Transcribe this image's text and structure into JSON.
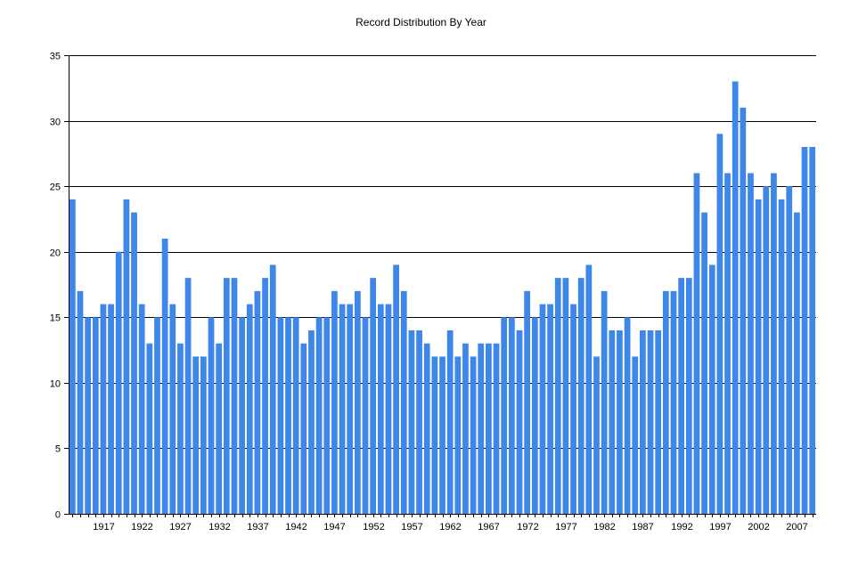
{
  "chart_data": {
    "type": "bar",
    "title": "Record Distribution By Year",
    "xlabel": "",
    "ylabel": "",
    "ylim": [
      0,
      35
    ],
    "yticks": [
      0,
      5,
      10,
      15,
      20,
      25,
      30,
      35
    ],
    "grid": true,
    "legend": "none",
    "bar_color": "#3e87e8",
    "categories": [
      1913,
      1914,
      1915,
      1916,
      1917,
      1918,
      1919,
      1920,
      1921,
      1922,
      1923,
      1924,
      1925,
      1926,
      1927,
      1928,
      1929,
      1930,
      1931,
      1932,
      1933,
      1934,
      1935,
      1936,
      1937,
      1938,
      1939,
      1940,
      1941,
      1942,
      1943,
      1944,
      1945,
      1946,
      1947,
      1948,
      1949,
      1950,
      1951,
      1952,
      1953,
      1954,
      1955,
      1956,
      1957,
      1958,
      1959,
      1960,
      1961,
      1962,
      1963,
      1964,
      1965,
      1966,
      1967,
      1968,
      1969,
      1970,
      1971,
      1972,
      1973,
      1974,
      1975,
      1976,
      1977,
      1978,
      1979,
      1980,
      1981,
      1982,
      1983,
      1984,
      1985,
      1986,
      1987,
      1988,
      1989,
      1990,
      1991,
      1992,
      1993,
      1994,
      1995,
      1996,
      1997,
      1998,
      1999,
      2000,
      2001,
      2002,
      2003,
      2004,
      2005,
      2006,
      2007,
      2008,
      2009
    ],
    "values": [
      24,
      17,
      15,
      15,
      16,
      16,
      20,
      24,
      23,
      16,
      13,
      15,
      21,
      16,
      13,
      18,
      12,
      12,
      15,
      13,
      18,
      18,
      15,
      16,
      17,
      18,
      19,
      15,
      15,
      15,
      13,
      14,
      15,
      15,
      17,
      16,
      16,
      17,
      15,
      18,
      16,
      16,
      19,
      17,
      14,
      14,
      13,
      12,
      12,
      14,
      12,
      13,
      12,
      13,
      13,
      13,
      15,
      15,
      14,
      17,
      15,
      16,
      16,
      18,
      18,
      16,
      18,
      19,
      12,
      17,
      14,
      14,
      15,
      12,
      14,
      14,
      14,
      17,
      17,
      18,
      18,
      26,
      23,
      19,
      29,
      26,
      33,
      31,
      26,
      24,
      25,
      26,
      24,
      25,
      23,
      28,
      28
    ],
    "xtick_labels": [
      "1917",
      "1922",
      "1927",
      "1932",
      "1937",
      "1942",
      "1947",
      "1952",
      "1957",
      "1962",
      "1967",
      "1972",
      "1977",
      "1982",
      "1987",
      "1992",
      "1997",
      "2002",
      "2007"
    ]
  }
}
